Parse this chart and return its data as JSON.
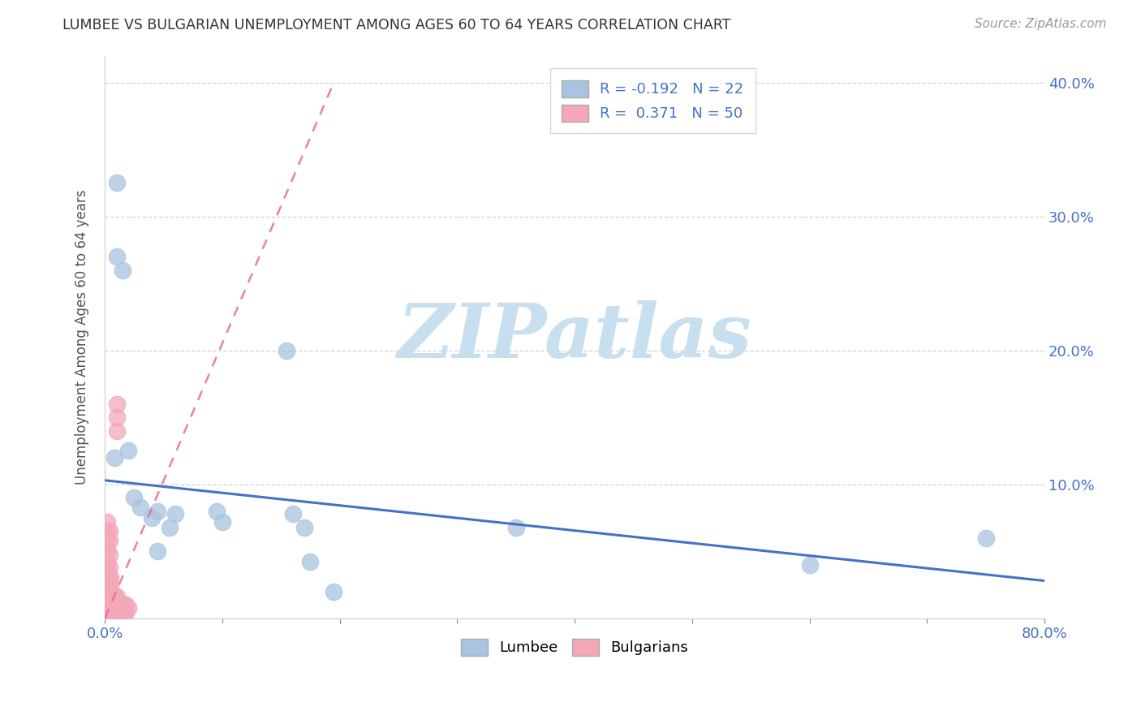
{
  "title": "LUMBEE VS BULGARIAN UNEMPLOYMENT AMONG AGES 60 TO 64 YEARS CORRELATION CHART",
  "source": "Source: ZipAtlas.com",
  "ylabel": "Unemployment Among Ages 60 to 64 years",
  "xlim": [
    0.0,
    0.8
  ],
  "ylim": [
    0.0,
    0.42
  ],
  "xticks": [
    0.0,
    0.1,
    0.2,
    0.3,
    0.4,
    0.5,
    0.6,
    0.7,
    0.8
  ],
  "xticklabels_sparse": [
    "0.0%",
    "",
    "",
    "",
    "",
    "",
    "",
    "",
    "80.0%"
  ],
  "yticks": [
    0.0,
    0.1,
    0.2,
    0.3,
    0.4
  ],
  "right_yticklabels": [
    "",
    "10.0%",
    "20.0%",
    "30.0%",
    "40.0%"
  ],
  "lumbee_color": "#a8c4e0",
  "lumbee_edge": "#7aafd4",
  "bulgarian_color": "#f4a7b9",
  "bulgarian_edge": "#e07090",
  "lumbee_R": -0.192,
  "lumbee_N": 22,
  "bulgarian_R": 0.371,
  "bulgarian_N": 50,
  "trend_blue": "#4472c4",
  "trend_pink": "#e07090",
  "lumbee_x": [
    0.01,
    0.01,
    0.015,
    0.02,
    0.025,
    0.03,
    0.04,
    0.045,
    0.045,
    0.055,
    0.06,
    0.095,
    0.1,
    0.155,
    0.16,
    0.17,
    0.175,
    0.195,
    0.35,
    0.6,
    0.75,
    0.008
  ],
  "lumbee_y": [
    0.325,
    0.27,
    0.26,
    0.125,
    0.09,
    0.083,
    0.075,
    0.08,
    0.05,
    0.068,
    0.078,
    0.08,
    0.072,
    0.2,
    0.078,
    0.068,
    0.042,
    0.02,
    0.068,
    0.04,
    0.06,
    0.12
  ],
  "bulgarian_x": [
    0.002,
    0.002,
    0.002,
    0.002,
    0.002,
    0.002,
    0.002,
    0.002,
    0.002,
    0.002,
    0.002,
    0.002,
    0.003,
    0.004,
    0.004,
    0.004,
    0.004,
    0.004,
    0.004,
    0.004,
    0.004,
    0.004,
    0.005,
    0.005,
    0.005,
    0.005,
    0.005,
    0.006,
    0.006,
    0.007,
    0.007,
    0.007,
    0.008,
    0.008,
    0.008,
    0.01,
    0.01,
    0.01,
    0.01,
    0.01,
    0.01,
    0.012,
    0.012,
    0.014,
    0.014,
    0.016,
    0.016,
    0.018,
    0.018,
    0.02
  ],
  "bulgarian_y": [
    0.003,
    0.007,
    0.012,
    0.018,
    0.024,
    0.03,
    0.036,
    0.042,
    0.05,
    0.058,
    0.065,
    0.072,
    0.005,
    0.004,
    0.01,
    0.016,
    0.022,
    0.03,
    0.038,
    0.048,
    0.058,
    0.065,
    0.004,
    0.012,
    0.018,
    0.024,
    0.03,
    0.005,
    0.01,
    0.006,
    0.012,
    0.018,
    0.005,
    0.01,
    0.016,
    0.004,
    0.01,
    0.016,
    0.14,
    0.15,
    0.16,
    0.004,
    0.01,
    0.005,
    0.01,
    0.004,
    0.01,
    0.004,
    0.01,
    0.008
  ],
  "blue_trend_x": [
    0.0,
    0.8
  ],
  "blue_trend_y": [
    0.103,
    0.028
  ],
  "pink_trend_x": [
    0.0,
    0.195
  ],
  "pink_trend_y": [
    0.0,
    0.4
  ],
  "watermark_text": "ZIPatlas",
  "watermark_color": "#c8dff0",
  "background_color": "#ffffff",
  "grid_color": "#d0d0d0",
  "tick_color": "#4472c4",
  "title_color": "#333333",
  "source_color": "#999999",
  "ylabel_color": "#555555"
}
